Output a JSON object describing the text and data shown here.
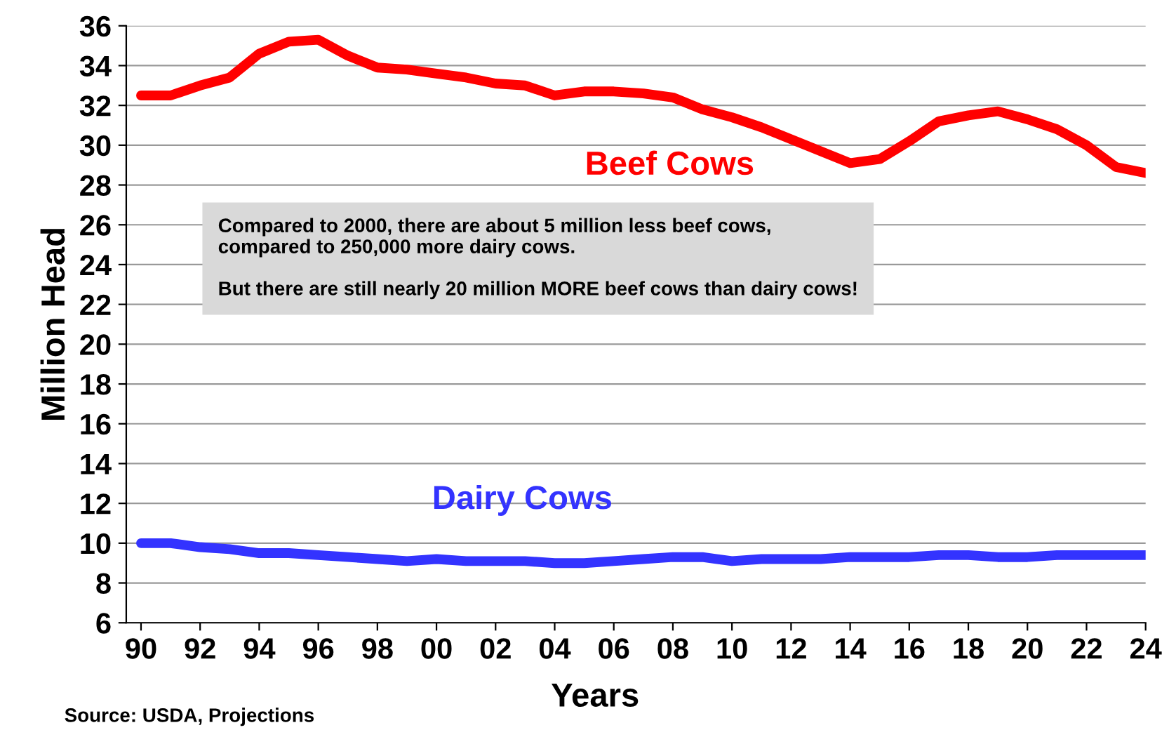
{
  "chart_data": {
    "type": "line",
    "xlabel": "Years",
    "ylabel": "Million Head",
    "x": [
      1990,
      1991,
      1992,
      1993,
      1994,
      1995,
      1996,
      1997,
      1998,
      1999,
      2000,
      2001,
      2002,
      2003,
      2004,
      2005,
      2006,
      2007,
      2008,
      2009,
      2010,
      2011,
      2012,
      2013,
      2014,
      2015,
      2016,
      2017,
      2018,
      2019,
      2020,
      2021,
      2022,
      2023,
      2024
    ],
    "series": [
      {
        "name": "Beef Cows",
        "color": "#ff0000",
        "values": [
          32.5,
          32.5,
          33.0,
          33.4,
          34.6,
          35.2,
          35.3,
          34.5,
          33.9,
          33.8,
          33.6,
          33.4,
          33.1,
          33.0,
          32.5,
          32.7,
          32.7,
          32.6,
          32.4,
          31.8,
          31.4,
          30.9,
          30.3,
          29.7,
          29.1,
          29.3,
          30.2,
          31.2,
          31.5,
          31.7,
          31.3,
          30.8,
          30.0,
          28.9,
          28.6
        ]
      },
      {
        "name": "Dairy Cows",
        "color": "#3333ff",
        "values": [
          10.0,
          10.0,
          9.8,
          9.7,
          9.5,
          9.5,
          9.4,
          9.3,
          9.2,
          9.1,
          9.2,
          9.1,
          9.1,
          9.1,
          9.0,
          9.0,
          9.1,
          9.2,
          9.3,
          9.3,
          9.1,
          9.2,
          9.2,
          9.2,
          9.3,
          9.3,
          9.3,
          9.4,
          9.4,
          9.3,
          9.3,
          9.4,
          9.4,
          9.4,
          9.4
        ]
      }
    ],
    "xlim": [
      1989.5,
      2024
    ],
    "xticks": [
      {
        "value": 1990,
        "label": "90"
      },
      {
        "value": 1992,
        "label": "92"
      },
      {
        "value": 1994,
        "label": "94"
      },
      {
        "value": 1996,
        "label": "96"
      },
      {
        "value": 1998,
        "label": "98"
      },
      {
        "value": 2000,
        "label": "00"
      },
      {
        "value": 2002,
        "label": "02"
      },
      {
        "value": 2004,
        "label": "04"
      },
      {
        "value": 2006,
        "label": "06"
      },
      {
        "value": 2008,
        "label": "08"
      },
      {
        "value": 2010,
        "label": "10"
      },
      {
        "value": 2012,
        "label": "12"
      },
      {
        "value": 2014,
        "label": "14"
      },
      {
        "value": 2016,
        "label": "16"
      },
      {
        "value": 2018,
        "label": "18"
      },
      {
        "value": 2020,
        "label": "20"
      },
      {
        "value": 2022,
        "label": "22"
      },
      {
        "value": 2024,
        "label": "24"
      }
    ],
    "ylim": [
      6,
      36
    ],
    "yticks": [
      6,
      8,
      10,
      12,
      14,
      16,
      18,
      20,
      22,
      24,
      26,
      28,
      30,
      32,
      34,
      36
    ],
    "grid": "y",
    "legend": false,
    "marker": "none",
    "line_style": "solid",
    "annotations": [
      "Compared to 2000, there are about 5 million less beef cows,\ncompared to 250,000 more dairy cows.\n\nBut there are still nearly 20 million MORE beef cows than dairy cows!",
      "Source: USDA, Projections"
    ]
  }
}
